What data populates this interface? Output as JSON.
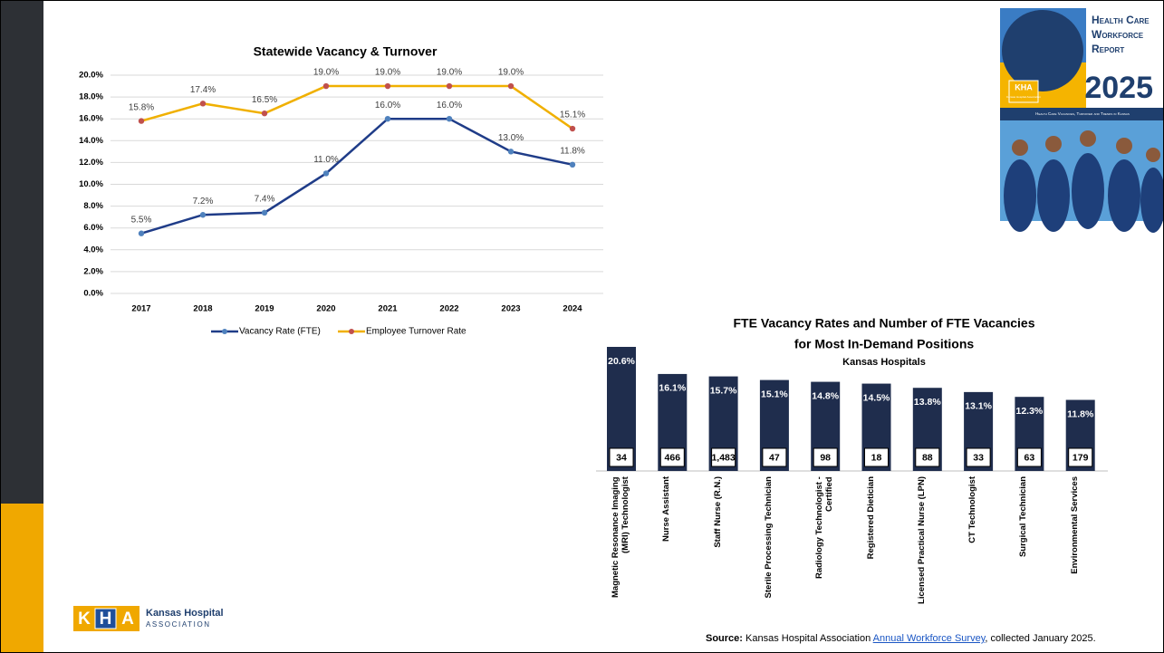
{
  "chart_data": [
    {
      "type": "line",
      "title": "Statewide Vacancy & Turnover",
      "categories": [
        "2017",
        "2018",
        "2019",
        "2020",
        "2021",
        "2022",
        "2023",
        "2024"
      ],
      "series": [
        {
          "name": "Vacancy Rate (FTE)",
          "color": "#1f3c88",
          "marker_color": "#4f81bd",
          "values": [
            5.5,
            7.2,
            7.4,
            11,
            16,
            16,
            13,
            11.8
          ],
          "value_labels": [
            "5.5%",
            "7.2%",
            "7.4%",
            "11.0%",
            "16.0%",
            "16.0%",
            "13.0%",
            "11.8%"
          ]
        },
        {
          "name": "Employee Turnover Rate",
          "color": "#f0b000",
          "marker_color": "#c0504d",
          "values": [
            15.8,
            17.4,
            16.5,
            19,
            19,
            19,
            19,
            15.1
          ],
          "value_labels": [
            "15.8%",
            "17.4%",
            "16.5%",
            "19.0%",
            "19.0%",
            "19.0%",
            "19.0%",
            "15.1%"
          ]
        }
      ],
      "ylim": [
        0,
        20
      ],
      "yticks": [
        {
          "value": 0,
          "label": "0.0%"
        },
        {
          "value": 2,
          "label": "2.0%"
        },
        {
          "value": 4,
          "label": "4.0%"
        },
        {
          "value": 6,
          "label": "6.0%"
        },
        {
          "value": 8,
          "label": "8.0%"
        },
        {
          "value": 10,
          "label": "10.0%"
        },
        {
          "value": 12,
          "label": "12.0%"
        },
        {
          "value": 14,
          "label": "14.0%"
        },
        {
          "value": 16,
          "label": "16.0%"
        },
        {
          "value": 18,
          "label": "18.0%"
        },
        {
          "value": 20,
          "label": "20.0%"
        }
      ],
      "grid": true,
      "legend": "bottom"
    },
    {
      "type": "bar",
      "title_lines": [
        "FTE Vacancy Rates and Number of FTE Vacancies",
        "for Most In-Demand Positions"
      ],
      "subtitle": "Kansas Hospitals",
      "color": "#1f2d4d",
      "categories": [
        "Magnetic Resonance Imaging (MRI) Technologist",
        "Nurse Assistant",
        "Staff Nurse (R.N.)",
        "Sterile Processing Technician",
        "Radiology Technologist - Certified",
        "Registered Dietician",
        "Licensed Practical Nurse (LPN)",
        "CT Technologist",
        "Surgical Technician",
        "Environmental Services"
      ],
      "values": [
        20.6,
        16.1,
        15.7,
        15.1,
        14.8,
        14.5,
        13.8,
        13.1,
        12.3,
        11.8
      ],
      "value_labels": [
        "20.6%",
        "16.1%",
        "15.7%",
        "15.1%",
        "14.8%",
        "14.5%",
        "13.8%",
        "13.1%",
        "12.3%",
        "11.8%"
      ],
      "vacancies": [
        34,
        466,
        1483,
        47,
        98,
        18,
        88,
        33,
        63,
        179
      ],
      "vacancy_labels": [
        "34",
        "466",
        "1,483",
        "47",
        "98",
        "18",
        "88",
        "33",
        "63",
        "179"
      ]
    }
  ],
  "source": {
    "label": "Source:",
    "text": "Kansas Hospital Association",
    "link": "Annual Workforce Survey",
    "tail": ", collected January 2025."
  },
  "logo": {
    "letters": [
      "K",
      "H",
      "A"
    ],
    "name": "Kansas Hospital",
    "tagline": "ASSOCIATION"
  },
  "cover": {
    "title_lines": [
      "Health Care",
      "Workforce",
      "Report"
    ],
    "year": "2025",
    "badge": "KHA",
    "badge_sub": "Kansas Hospital Association",
    "band": "Health Care Vacancies, Turnover and Trends in Kansas"
  }
}
